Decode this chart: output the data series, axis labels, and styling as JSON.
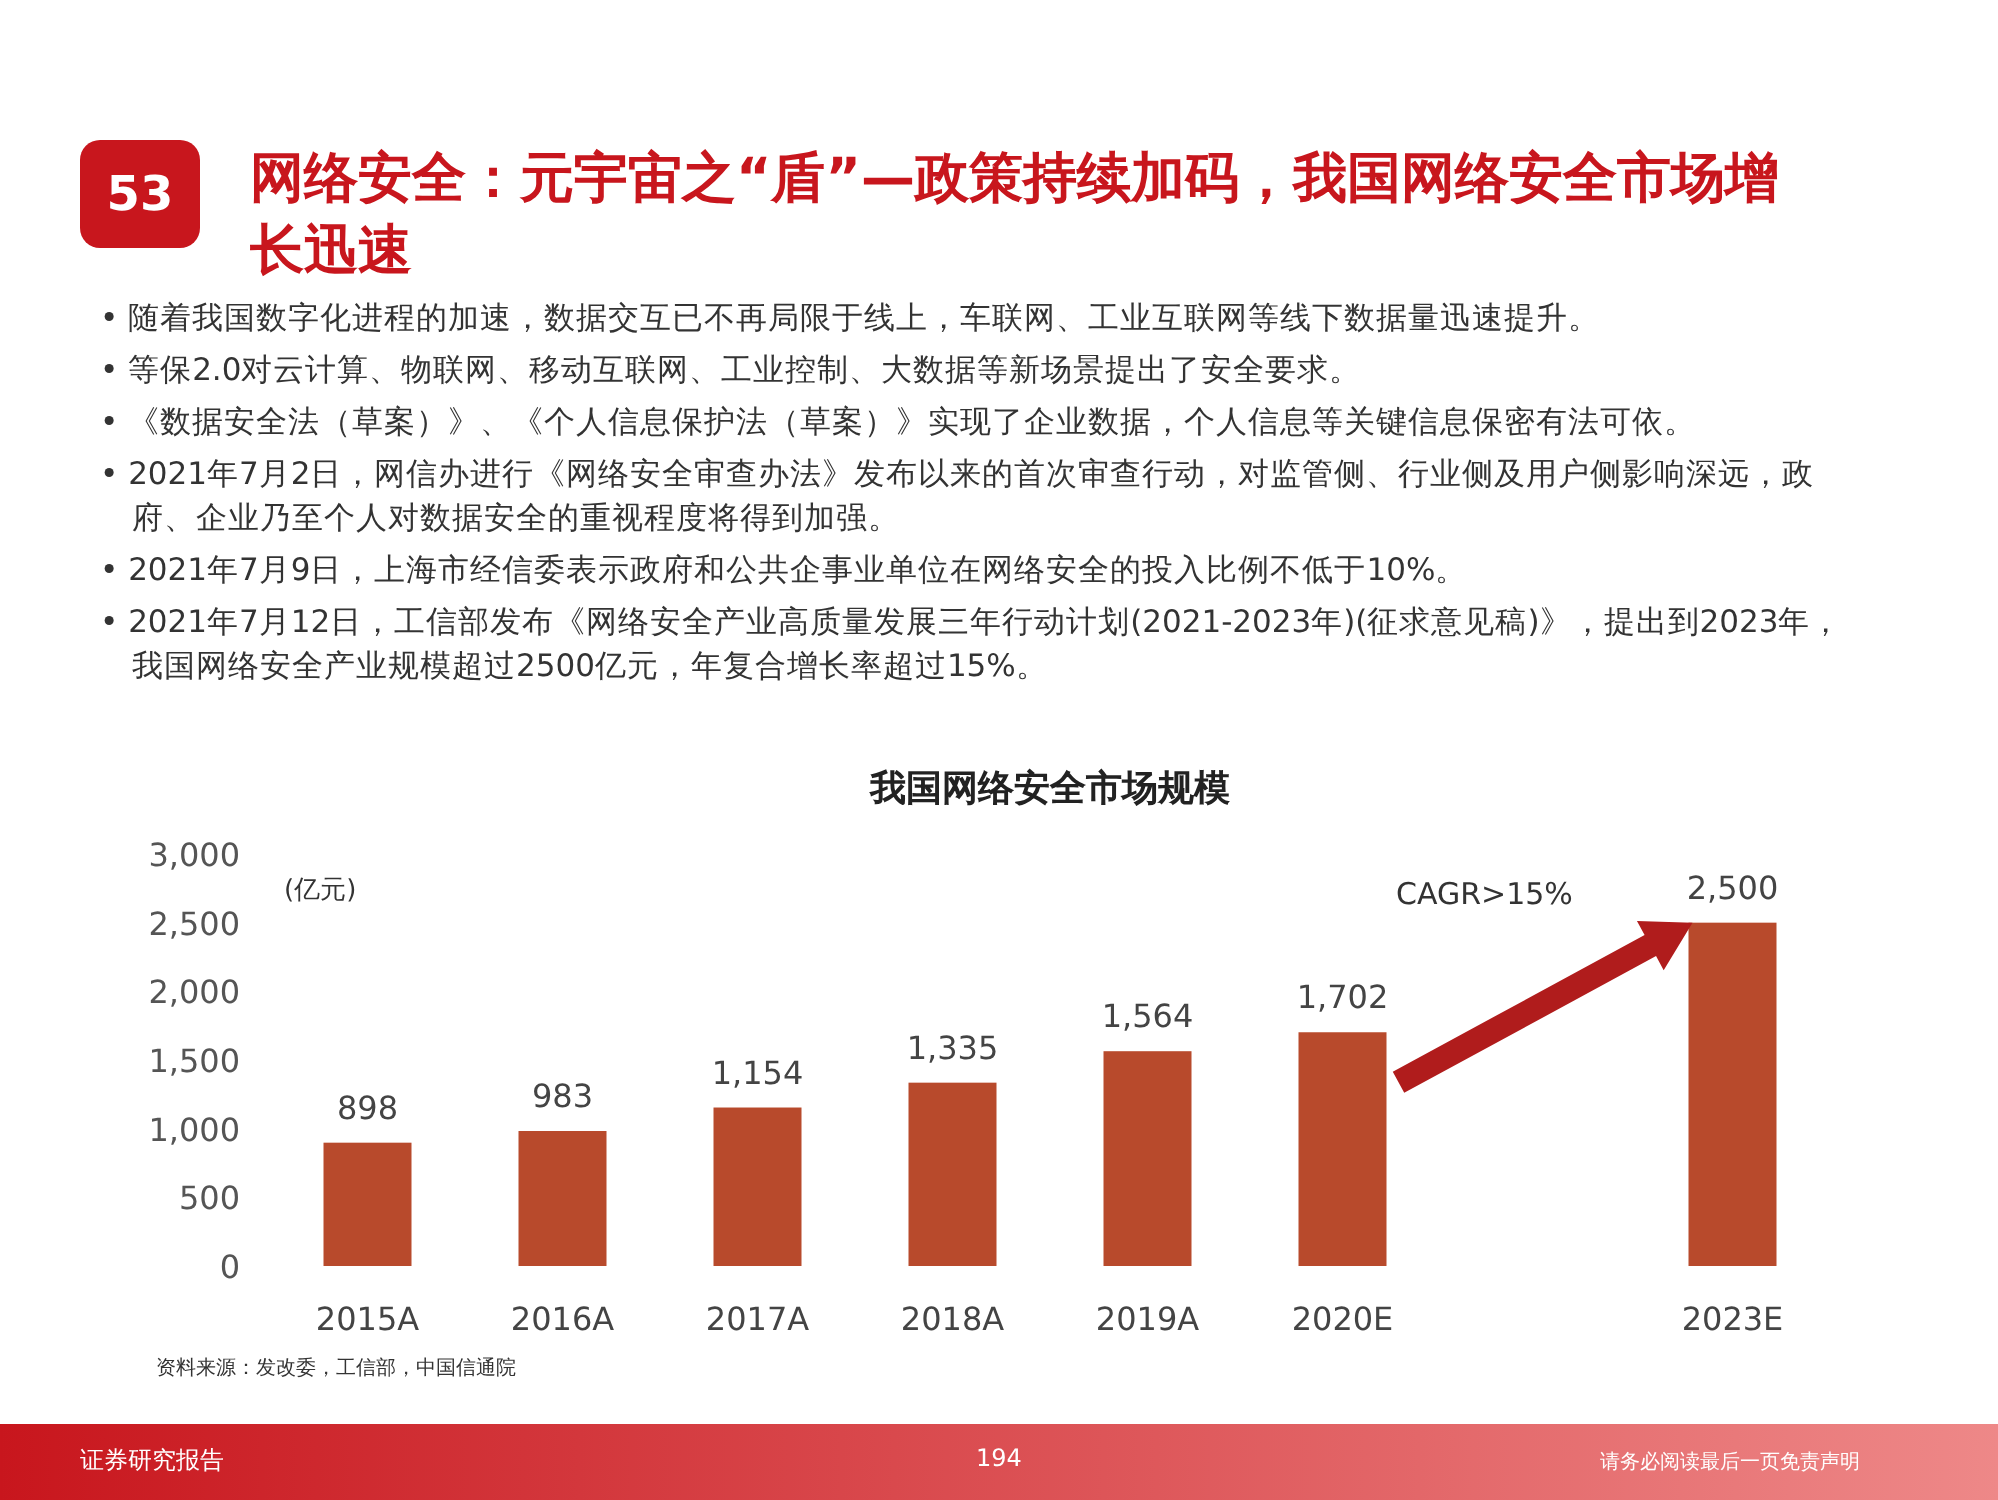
{
  "chart_data": {
    "type": "bar",
    "title": "我国网络安全市场规模",
    "ylabel": "(亿元)",
    "categories": [
      "2015A",
      "2016A",
      "2017A",
      "2018A",
      "2019A",
      "2020E",
      null,
      "2023E"
    ],
    "series": [
      {
        "color": "#b84a2c",
        "values": [
          898,
          983,
          1154,
          1335,
          1564,
          1702,
          null,
          2500
        ],
        "value_labels": [
          "898",
          "983",
          "1,154",
          "1,335",
          "1,564",
          "1,702",
          null,
          "2,500"
        ]
      }
    ],
    "ylim": [
      0,
      3000
    ],
    "yticks": [
      0,
      500,
      {
        "value": 1000,
        "label": "1,000"
      },
      {
        "value": 1500,
        "label": "1,500"
      },
      {
        "value": 2000,
        "label": "2,000"
      },
      {
        "value": 2500,
        "label": "2,500"
      },
      {
        "value": 3000,
        "label": "3,000"
      }
    ],
    "annotations": [
      "网络安全：元宇宙之“盾”—政策持续加码，我国网络安全市场增长迅速",
      "53",
      "• 随着我国数字化进程的加速，数据交互已不再局限于线上，车联网、工业互联网等线下数据量迅速提升。",
      "• 等保2.0对云计算、物联网、移动互联网、工业控制、大数据等新场景提出了安全要求。",
      "• 《数据安全法（草案）》、《个人信息保护法（草案）》实现了企业数据，个人信息等关键信息保密有法可依。",
      "• 2021年7月2日，网信办进行《网络安全审查办法》发布以来的首次审查行动，对监管侧、行业侧及用户侧影响深远，政府、企业乃至个人对数据安全的重视程度将得到加强。",
      "• 2021年7月9日，上海市经信委表示政府和公共企事业单位在网络安全的投入比例不低于10%。",
      "• 2021年7月12日，工信部发布《网络安全产业高质量发展三年行动计划(2021-2023年)(征求意见稿)》，提出到2023年，我国网络安全产业规模超过2500亿元，年复合增长率超过15%。",
      "资料来源：发改委，工信部，中国信通院",
      "证券研究报告",
      "194",
      "请务必阅读最后一页免责声明",
      "CAGR>15%"
    ]
  }
}
